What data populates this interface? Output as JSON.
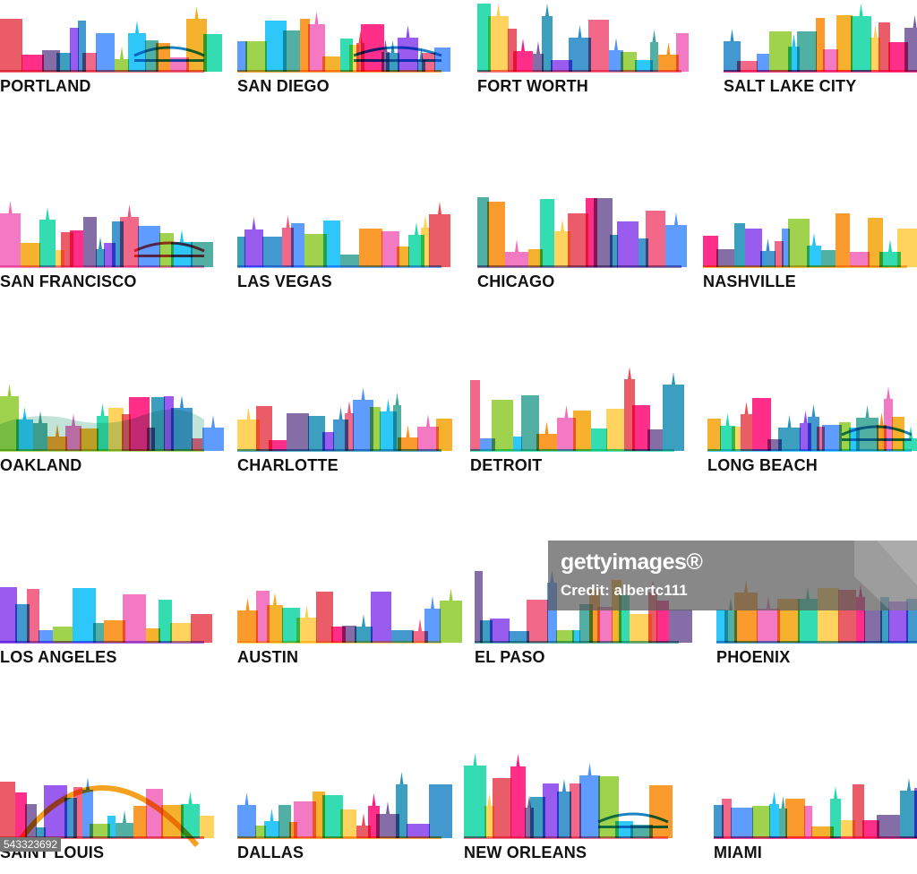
{
  "cities": [
    {
      "id": "portland",
      "name": "PORTLAND"
    },
    {
      "id": "san-diego",
      "name": "SAN DIEGO"
    },
    {
      "id": "fort-worth",
      "name": "FORT WORTH"
    },
    {
      "id": "salt-lake-city",
      "name": "SALT LAKE CITY"
    },
    {
      "id": "san-francisco",
      "name": "SAN FRANCISCO"
    },
    {
      "id": "las-vegas",
      "name": "LAS VEGAS"
    },
    {
      "id": "chicago",
      "name": "CHICAGO"
    },
    {
      "id": "nashville",
      "name": "NASHVILLE"
    },
    {
      "id": "oakland",
      "name": "OAKLAND"
    },
    {
      "id": "charlotte",
      "name": "CHARLOTTE"
    },
    {
      "id": "detroit",
      "name": "DETROIT"
    },
    {
      "id": "long-beach",
      "name": "LONG BEACH"
    },
    {
      "id": "los-angeles",
      "name": "LOS ANGELES"
    },
    {
      "id": "austin",
      "name": "AUSTIN"
    },
    {
      "id": "el-paso",
      "name": "EL PASO"
    },
    {
      "id": "phoenix",
      "name": "PHOENIX"
    },
    {
      "id": "saint-louis",
      "name": "SAINT LOUIS"
    },
    {
      "id": "dallas",
      "name": "DALLAS"
    },
    {
      "id": "new-orleans",
      "name": "NEW ORLEANS"
    },
    {
      "id": "miami",
      "name": "MIAMI"
    }
  ],
  "watermark": {
    "logo": "gettyimages®",
    "credit": "Credit: albertc111"
  },
  "image_id": "543323692",
  "palette": [
    "#e63946",
    "#f4a100",
    "#2a9d8f",
    "#3a86ff",
    "#8338ec",
    "#ff006e",
    "#06d6a0",
    "#fb8500",
    "#8ac926",
    "#1982c4",
    "#6a4c93",
    "#ffca3a",
    "#f15bb5",
    "#00bbf9",
    "#ef476f",
    "#118ab2"
  ]
}
